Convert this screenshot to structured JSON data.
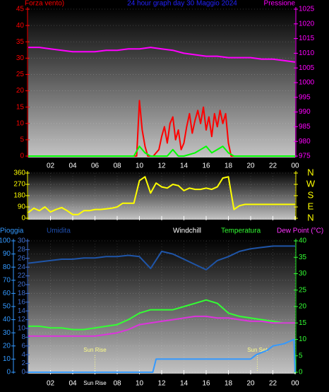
{
  "chart_data": [
    {
      "type": "line",
      "title": "24 hour graph day 30 Maggio 2024",
      "title_color": "#2222ff",
      "y_label": "Forza vento)",
      "y2_label": "Pressione",
      "xlim": [
        0,
        24
      ],
      "ylim": [
        0,
        45
      ],
      "yticks": [
        0,
        5,
        10,
        15,
        20,
        25,
        30,
        35,
        40,
        45
      ],
      "ytick_color": "#ff0000",
      "y2lim": [
        975,
        1025
      ],
      "y2ticks": [
        975,
        980,
        985,
        990,
        995,
        1000,
        1005,
        1010,
        1015,
        1020,
        1025
      ],
      "y2tick_color": "#ff00ff",
      "grid": true,
      "series": [
        {
          "color": "#ff00ff",
          "axis": "y2",
          "x": [
            0,
            1,
            2,
            3,
            4,
            5,
            6,
            7,
            8,
            9,
            10,
            11,
            12,
            13,
            14,
            15,
            16,
            17,
            18,
            19,
            20,
            21,
            22,
            23,
            24
          ],
          "values": [
            1012,
            1012,
            1011.5,
            1011,
            1010.5,
            1010.5,
            1010.5,
            1011,
            1011,
            1011.5,
            1011.5,
            1012,
            1011.5,
            1011,
            1010,
            1009.5,
            1009,
            1009,
            1008.5,
            1008.5,
            1008.5,
            1008,
            1008,
            1007.5,
            1007
          ]
        },
        {
          "color": "#ff0000",
          "x": [
            0,
            9.5,
            9.75,
            10,
            10.25,
            10.5,
            10.75,
            11,
            11.25,
            11.5,
            11.75,
            12,
            12.25,
            12.5,
            12.75,
            13,
            13.25,
            13.5,
            13.75,
            14,
            14.25,
            14.5,
            14.75,
            15,
            15.25,
            15.5,
            15.75,
            16,
            16.25,
            16.5,
            16.75,
            17,
            17.25,
            17.5,
            17.75,
            18,
            18.25,
            18.5,
            24
          ],
          "values": [
            0,
            0,
            0,
            17,
            8,
            3,
            0,
            0,
            0,
            1,
            2,
            6,
            9,
            4,
            10,
            12,
            5,
            8,
            2,
            4,
            9,
            13,
            7,
            11,
            14,
            10,
            15,
            8,
            12,
            6,
            13,
            9,
            14,
            10,
            13,
            4,
            0,
            0,
            0
          ]
        },
        {
          "color": "#00ff00",
          "x": [
            0,
            9.5,
            10,
            10.5,
            11,
            12.5,
            13,
            13.5,
            14,
            15,
            15.5,
            16,
            16.5,
            17,
            17.5,
            18,
            18.5,
            24
          ],
          "values": [
            0,
            0,
            3,
            1,
            0,
            0,
            2,
            0,
            0,
            1,
            2,
            3,
            1,
            2,
            3,
            1,
            0,
            0
          ]
        }
      ]
    },
    {
      "type": "line",
      "xlim": [
        0,
        24
      ],
      "xticks": [
        {
          "value": 2,
          "label": "02"
        },
        {
          "value": 4,
          "label": "04"
        },
        {
          "value": 6,
          "label": "06"
        },
        {
          "value": 8,
          "label": "08"
        },
        10,
        12,
        14,
        16,
        18,
        20,
        22,
        {
          "value": 24,
          "label": "00"
        }
      ],
      "ylim": [
        0,
        360
      ],
      "yticks": [
        0,
        90,
        180,
        270,
        360
      ],
      "ytick_color": "#ffff00",
      "y2lim": [
        0,
        360
      ],
      "y2ticks": [
        {
          "value": 0,
          "label": "N"
        },
        {
          "value": 90,
          "label": "E"
        },
        {
          "value": 180,
          "label": "S"
        },
        {
          "value": 270,
          "label": "W"
        },
        {
          "value": 360,
          "label": "N"
        }
      ],
      "y2tick_color": "#ffff00",
      "grid": true,
      "series": [
        {
          "color": "#ffff00",
          "x": [
            0,
            0.5,
            1,
            1.5,
            2,
            2.5,
            3,
            3.5,
            4,
            4.5,
            5,
            5.5,
            6,
            6.5,
            7,
            7.5,
            8,
            8.5,
            9,
            9.5,
            10,
            10.5,
            11,
            11.5,
            12,
            12.5,
            13,
            13.5,
            14,
            14.5,
            15,
            15.5,
            16,
            16.5,
            17,
            17.5,
            18,
            18.5,
            19,
            19.5,
            20,
            20.5,
            21,
            21.5,
            22,
            22.5,
            23,
            23.5,
            24
          ],
          "values": [
            45,
            80,
            60,
            90,
            50,
            70,
            85,
            60,
            30,
            30,
            60,
            60,
            70,
            70,
            75,
            80,
            90,
            120,
            120,
            120,
            300,
            330,
            200,
            280,
            250,
            240,
            270,
            260,
            220,
            240,
            230,
            230,
            240,
            230,
            250,
            320,
            330,
            70,
            100,
            110,
            110,
            110,
            110,
            110,
            110,
            110,
            110,
            110,
            110
          ]
        }
      ]
    },
    {
      "type": "line",
      "xlim": [
        0,
        24
      ],
      "xticks": [
        {
          "value": 2,
          "label": "02"
        },
        {
          "value": 4,
          "label": "04"
        },
        {
          "value": 6,
          "label": "Sun Rise"
        },
        {
          "value": 8,
          "label": "08"
        },
        10,
        12,
        14,
        16,
        18,
        20,
        22,
        {
          "value": 24,
          "label": "00"
        }
      ],
      "headers": [
        {
          "text": "Pioggia",
          "color": "#3399ff"
        },
        {
          "text": "Umidita",
          "color": "#2050b0"
        },
        {
          "text": "Windchill",
          "color": "#ffffff"
        },
        {
          "text": "Temperatura",
          "color": "#33ff33"
        },
        {
          "text": "Dew Point (°C)",
          "color": "#ff33ff"
        }
      ],
      "ylim": [
        0,
        100
      ],
      "yticks": [
        0,
        10,
        20,
        30,
        40,
        50,
        60,
        70,
        80,
        90,
        100
      ],
      "ytick_color": "#3399ff",
      "y3lim": [
        0,
        30
      ],
      "y3ticks": [
        0,
        2,
        4,
        6,
        8,
        10,
        12,
        14,
        16,
        18,
        20,
        22,
        24,
        26,
        28,
        30
      ],
      "y3tick_color": "#4070d0",
      "y2lim": [
        0,
        40
      ],
      "y2ticks": [
        0,
        5,
        10,
        15,
        20,
        25,
        30,
        35,
        40
      ],
      "y2tick_color": "#33ff33",
      "grid": true,
      "annotations": [
        {
          "x": 6,
          "text": "Sun Rise"
        },
        {
          "x": 20.6,
          "text": "Sun Set"
        }
      ],
      "series": [
        {
          "color": "#1f55a8",
          "x": [
            0,
            1,
            2,
            3,
            4,
            5,
            6,
            7,
            8,
            9,
            10,
            11,
            12,
            13,
            14,
            15,
            16,
            17,
            18,
            19,
            20,
            21,
            22,
            23,
            24
          ],
          "values": [
            83,
            84,
            85,
            86,
            86,
            87,
            87,
            88,
            88,
            89,
            88,
            79,
            92,
            90,
            86,
            82,
            78,
            85,
            88,
            92,
            94,
            95,
            96,
            96,
            96
          ]
        },
        {
          "color": "#33ff33",
          "axis": "y2",
          "x": [
            0,
            1,
            2,
            3,
            4,
            5,
            6,
            7,
            8,
            9,
            10,
            11,
            12,
            13,
            14,
            15,
            16,
            17,
            18,
            19,
            20,
            21,
            22,
            23,
            24
          ],
          "values": [
            14,
            14,
            13.5,
            13.5,
            13,
            13,
            13.5,
            14,
            14.5,
            16,
            18,
            19,
            19,
            19,
            20,
            21,
            22,
            21,
            18,
            17,
            16.5,
            16,
            15.5,
            15,
            15
          ]
        },
        {
          "color": "#dd33dd",
          "axis": "y2",
          "x": [
            0,
            1,
            2,
            3,
            4,
            5,
            6,
            7,
            8,
            9,
            10,
            11,
            12,
            13,
            14,
            15,
            16,
            17,
            18,
            19,
            20,
            21,
            22,
            23,
            24
          ],
          "values": [
            11,
            11,
            11,
            11,
            11,
            11,
            11,
            11.5,
            12,
            13,
            14.5,
            15,
            15.5,
            16,
            16.5,
            17,
            17,
            16.5,
            16.5,
            16,
            15.5,
            15.5,
            15,
            15,
            15
          ]
        },
        {
          "color": "#3399ff",
          "axis": "y3",
          "x": [
            0,
            11.2,
            11.5,
            20,
            20.5,
            21.5,
            22,
            23,
            23.9,
            24
          ],
          "values": [
            0,
            0,
            3,
            3,
            4,
            5,
            6,
            6.5,
            7.5,
            0
          ]
        }
      ]
    }
  ]
}
